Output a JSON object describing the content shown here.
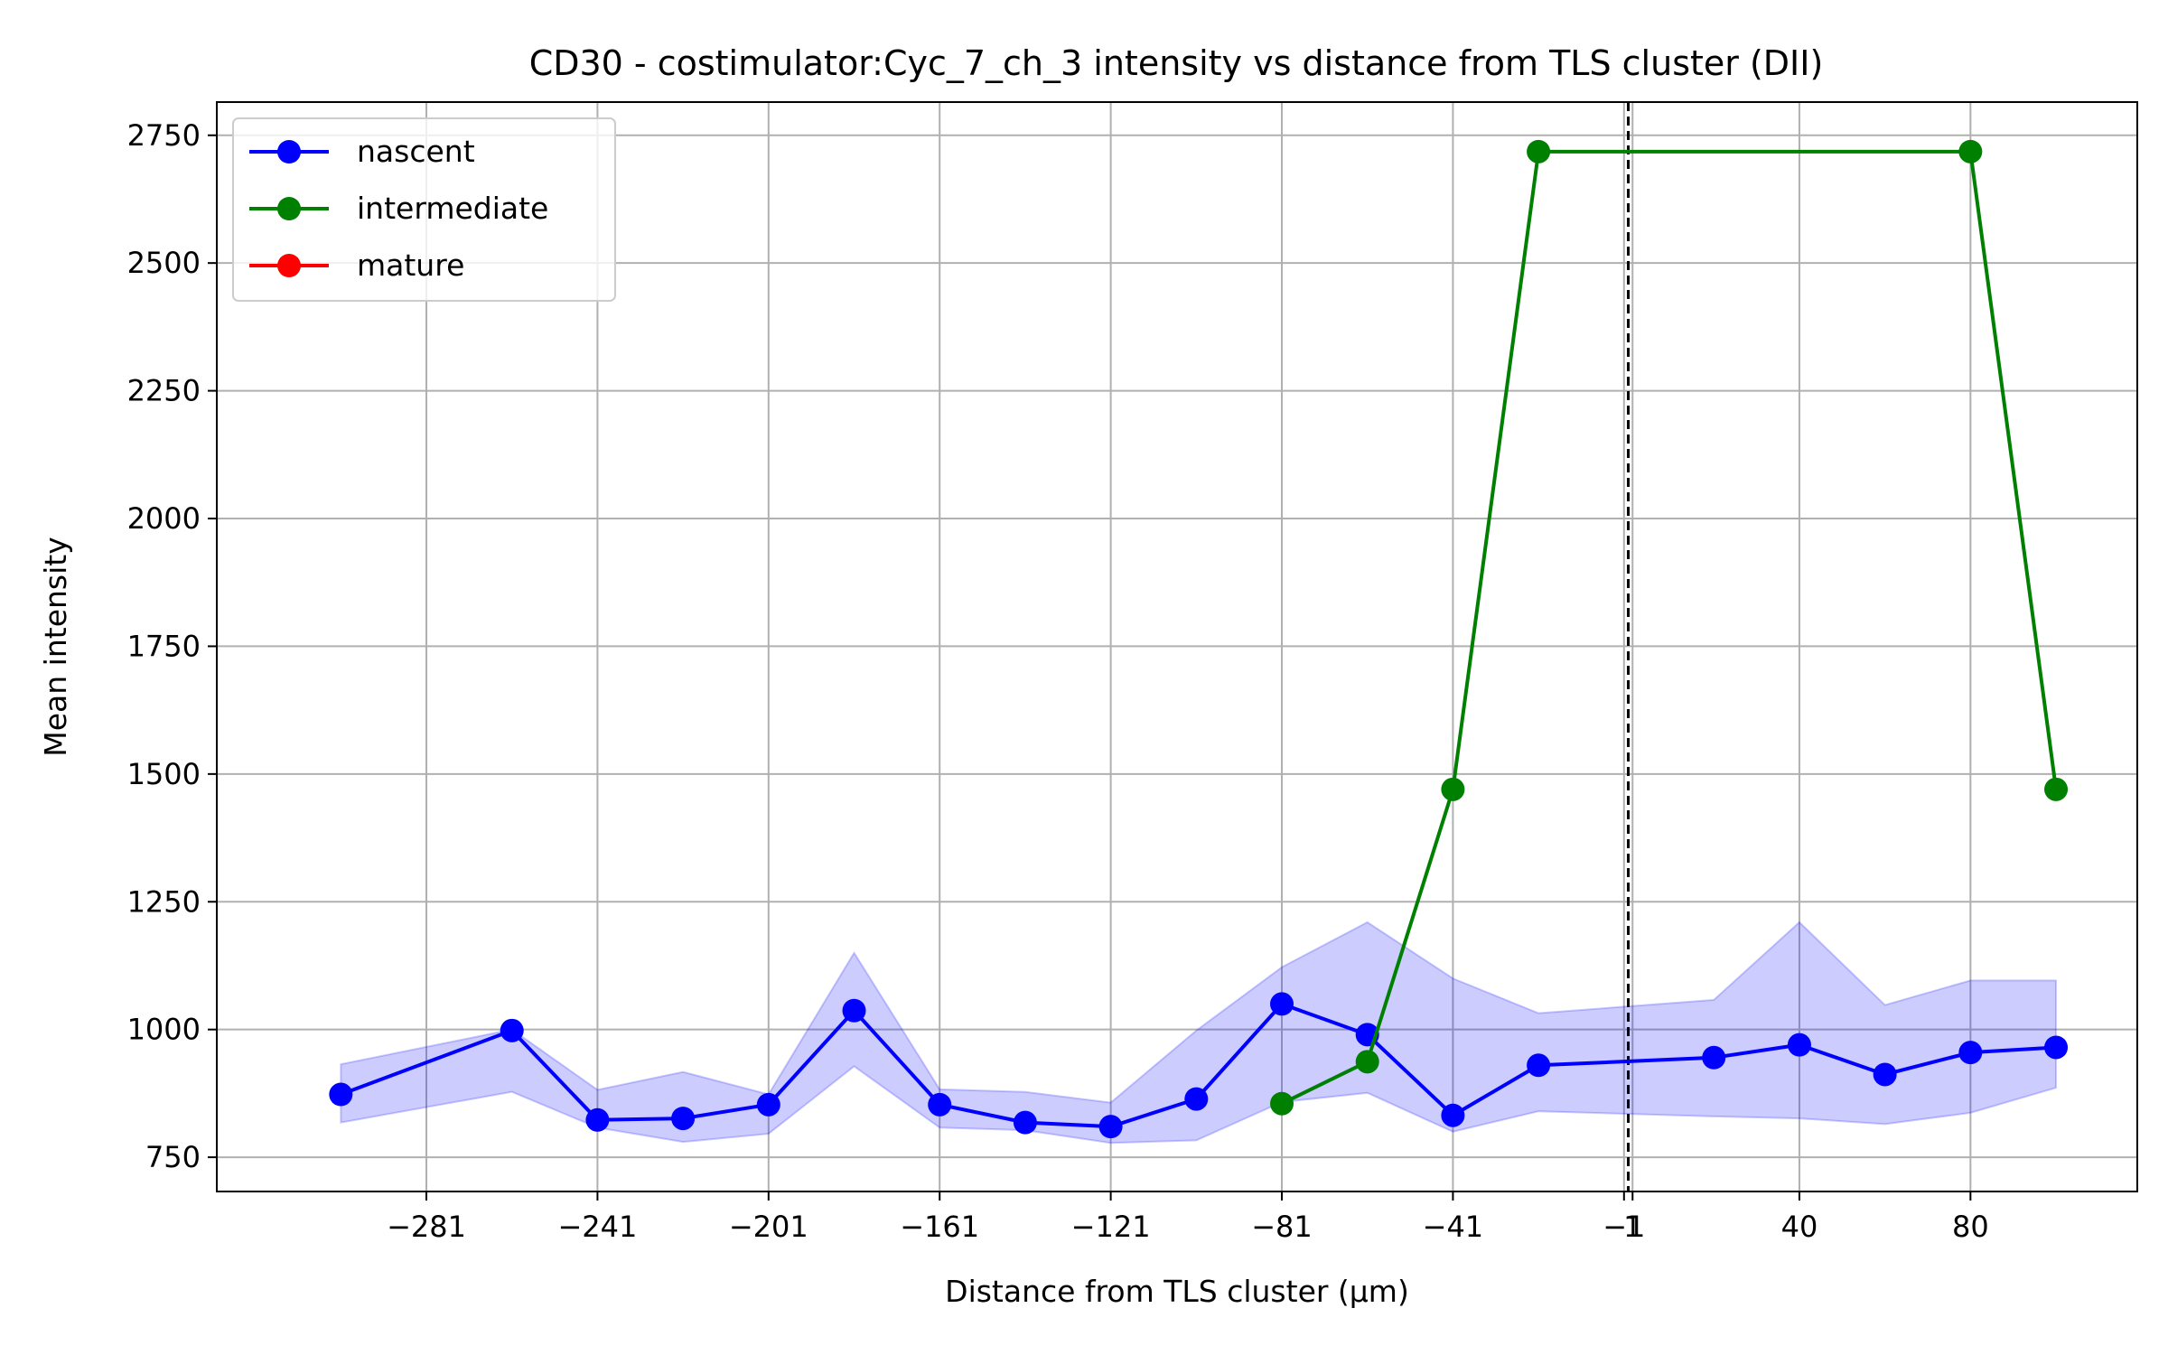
{
  "chart_data": {
    "type": "line",
    "title": "CD30 - costimulator:Cyc_7_ch_3 intensity vs distance from TLS cluster (DII)",
    "xlabel": "Distance from TLS cluster (μm)",
    "ylabel": "Mean intensity",
    "xlim": [
      -330,
      119
    ],
    "ylim": [
      683,
      2815
    ],
    "x_ticks": [
      -281,
      -241,
      -201,
      -161,
      -121,
      -81,
      -41,
      -1,
      1,
      40,
      80
    ],
    "x_tick_labels": [
      "−281",
      "−241",
      "−201",
      "−161",
      "−121",
      "−81",
      "−41",
      "−1",
      "1",
      "40",
      "80"
    ],
    "y_ticks": [
      750,
      1000,
      1250,
      1500,
      1750,
      2000,
      2250,
      2500,
      2750
    ],
    "grid": true,
    "vline": {
      "x": 0,
      "style": "dashed",
      "color": "#000000"
    },
    "legend_position": "top-left",
    "series": [
      {
        "name": "nascent",
        "color": "#0000ff",
        "x": [
          -301,
          -261,
          -241,
          -221,
          -201,
          -181,
          -161,
          -141,
          -121,
          -101,
          -81,
          -61,
          -41,
          -21,
          20,
          40,
          60,
          80,
          100
        ],
        "values": [
          873,
          998,
          823,
          826,
          853,
          1037,
          853,
          818,
          810,
          864,
          1050,
          990,
          832,
          930,
          945,
          970,
          912,
          955,
          965
        ],
        "band_lower": [
          818,
          878,
          808,
          780,
          796,
          928,
          808,
          803,
          778,
          783,
          858,
          876,
          800,
          840,
          830,
          826,
          815,
          837,
          886
        ],
        "band_upper": [
          932,
          1000,
          882,
          917,
          873,
          1150,
          883,
          878,
          857,
          998,
          1122,
          1210,
          1100,
          1032,
          1058,
          1210,
          1048,
          1096,
          1096
        ]
      },
      {
        "name": "intermediate",
        "color": "#008000",
        "x": [
          -81,
          -61,
          -41,
          -21,
          80,
          100
        ],
        "values": [
          855,
          937,
          1470,
          2718,
          2718,
          1470
        ]
      },
      {
        "name": "mature",
        "color": "#ff0000",
        "x": [],
        "values": []
      }
    ]
  }
}
